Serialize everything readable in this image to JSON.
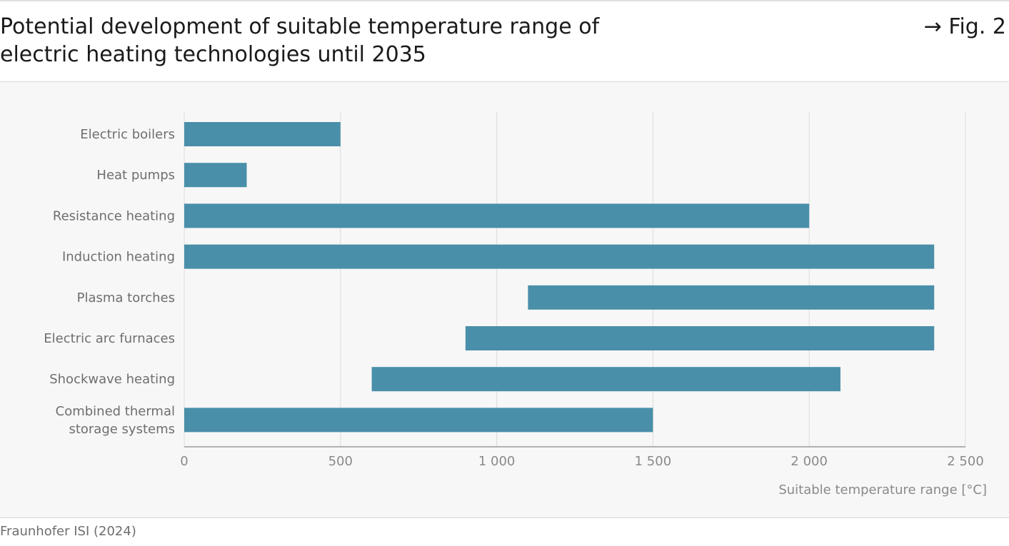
{
  "header": {
    "title": "Potential development of suitable temperature range of electric heating technologies until 2035",
    "fig_ref": "→ Fig. 2"
  },
  "footer": {
    "source": "Fraunhofer ISI (2024)"
  },
  "colors": {
    "bar": "#4a8fa9",
    "grid": "#dcdcdc",
    "axis": "#9a9a9a",
    "label": "#6e6e6e"
  },
  "chart_data": {
    "type": "bar",
    "orientation": "horizontal",
    "title": "",
    "xlabel": "Suitable temperature range  [°C]",
    "ylabel": "",
    "xlim": [
      0,
      2500
    ],
    "xticks": [
      0,
      500,
      1000,
      1500,
      2000,
      2500
    ],
    "xtick_labels": [
      "0",
      "500",
      "1 000",
      "1 500",
      "2 000",
      "2 500"
    ],
    "grid": true,
    "categories": [
      [
        "Electric boilers"
      ],
      [
        "Heat pumps"
      ],
      [
        "Resistance heating"
      ],
      [
        "Induction heating"
      ],
      [
        "Plasma torches"
      ],
      [
        "Electric arc furnaces"
      ],
      [
        "Shockwave heating"
      ],
      [
        "Combined thermal",
        "storage systems"
      ]
    ],
    "ranges": [
      [
        0,
        500
      ],
      [
        0,
        200
      ],
      [
        0,
        2000
      ],
      [
        0,
        2400
      ],
      [
        1100,
        2400
      ],
      [
        900,
        2400
      ],
      [
        600,
        2100
      ],
      [
        0,
        1500
      ]
    ]
  }
}
